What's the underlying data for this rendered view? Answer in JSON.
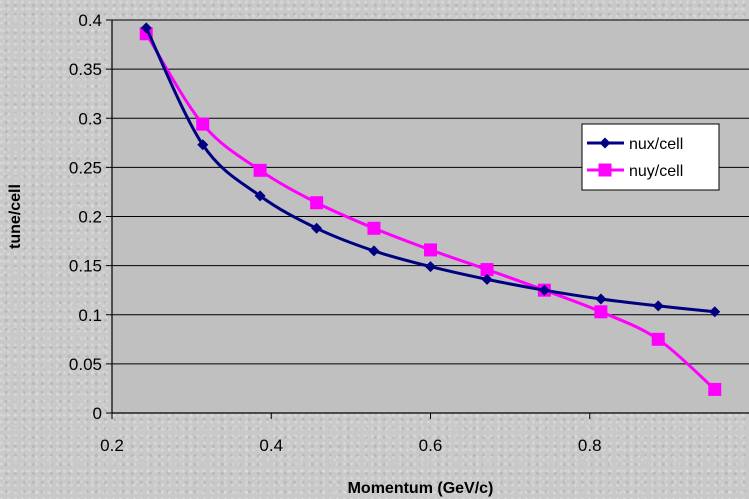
{
  "chart_data": {
    "type": "line",
    "xlabel": "Momentum (GeV/c)",
    "ylabel": "tune/cell",
    "xlim": [
      0.2,
      1.0
    ],
    "ylim": [
      0,
      0.4
    ],
    "xticks": [
      "0.2",
      "0.4",
      "0.6",
      "0.8"
    ],
    "yticks": [
      "0",
      "0.05",
      "0.1",
      "0.15",
      "0.2",
      "0.25",
      "0.3",
      "0.35",
      "0.4"
    ],
    "grid": "horizontal",
    "legend_position": "right",
    "plot_background": "#c0c0c0",
    "x": [
      0.243,
      0.314,
      0.386,
      0.457,
      0.529,
      0.6,
      0.671,
      0.743,
      0.814,
      0.886,
      0.957
    ],
    "series": [
      {
        "name": "nux/cell",
        "color": "#000080",
        "marker": "diamond",
        "values": [
          0.392,
          0.273,
          0.221,
          0.188,
          0.165,
          0.149,
          0.136,
          0.125,
          0.116,
          0.109,
          0.103
        ]
      },
      {
        "name": "nuy/cell",
        "color": "#ff00ff",
        "marker": "square",
        "values": [
          0.386,
          0.294,
          0.247,
          0.214,
          0.188,
          0.166,
          0.146,
          0.125,
          0.103,
          0.075,
          0.024
        ]
      }
    ]
  }
}
